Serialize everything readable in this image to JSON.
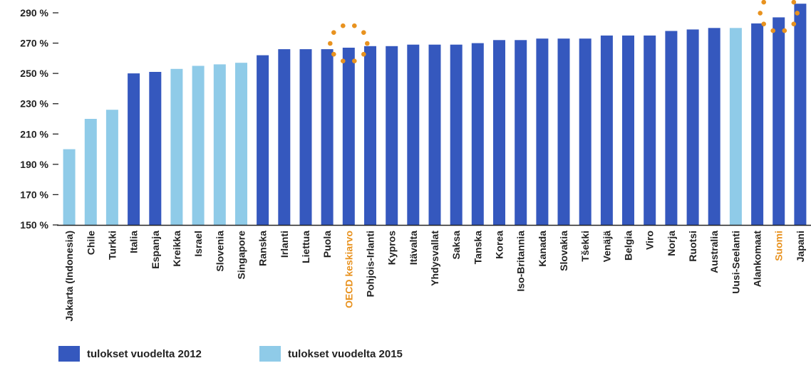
{
  "chart_data": {
    "type": "bar",
    "ylim": [
      150,
      300
    ],
    "yticks": [
      150,
      170,
      190,
      210,
      230,
      250,
      270,
      290
    ],
    "tick_suffix": " %",
    "colors": {
      "2012": "#3558be",
      "2015": "#8fcbe8",
      "highlight": "#e8921f",
      "axis": "#222222"
    },
    "categories": [
      "Jakarta (Indonesia)",
      "Chile",
      "Turkki",
      "Italia",
      "Espanja",
      "Kreikka",
      "Israel",
      "Slovenia",
      "Singapore",
      "Ranska",
      "Irlanti",
      "Liettua",
      "Puola",
      "OECD keskiarvo",
      "Pohjois-Irlanti",
      "Kypros",
      "Itävalta",
      "Yhdysvallat",
      "Saksa",
      "Tanska",
      "Korea",
      "Iso-Britannia",
      "Kanada",
      "Slovakia",
      "Tšekki",
      "Venäjä",
      "Belgia",
      "Viro",
      "Norja",
      "Ruotsi",
      "Australia",
      "Uusi-Seelanti",
      "Alankomaat",
      "Suomi",
      "Japani"
    ],
    "values": [
      200,
      220,
      226,
      250,
      251,
      253,
      255,
      256,
      257,
      262,
      266,
      266,
      266,
      267,
      268,
      268,
      269,
      269,
      269,
      270,
      272,
      272,
      273,
      273,
      273,
      275,
      275,
      275,
      278,
      279,
      280,
      280,
      283,
      287,
      296
    ],
    "year": [
      "2015",
      "2015",
      "2015",
      "2012",
      "2012",
      "2015",
      "2015",
      "2015",
      "2015",
      "2012",
      "2012",
      "2012",
      "2012",
      "2012",
      "2012",
      "2012",
      "2012",
      "2012",
      "2012",
      "2012",
      "2012",
      "2012",
      "2012",
      "2012",
      "2012",
      "2012",
      "2012",
      "2012",
      "2012",
      "2012",
      "2012",
      "2015",
      "2012",
      "2012",
      "2012"
    ],
    "highlighted": [
      "OECD keskiarvo",
      "Suomi"
    ]
  },
  "legend": {
    "item_2012": "tulokset vuodelta 2012",
    "item_2015": "tulokset vuodelta 2015"
  }
}
